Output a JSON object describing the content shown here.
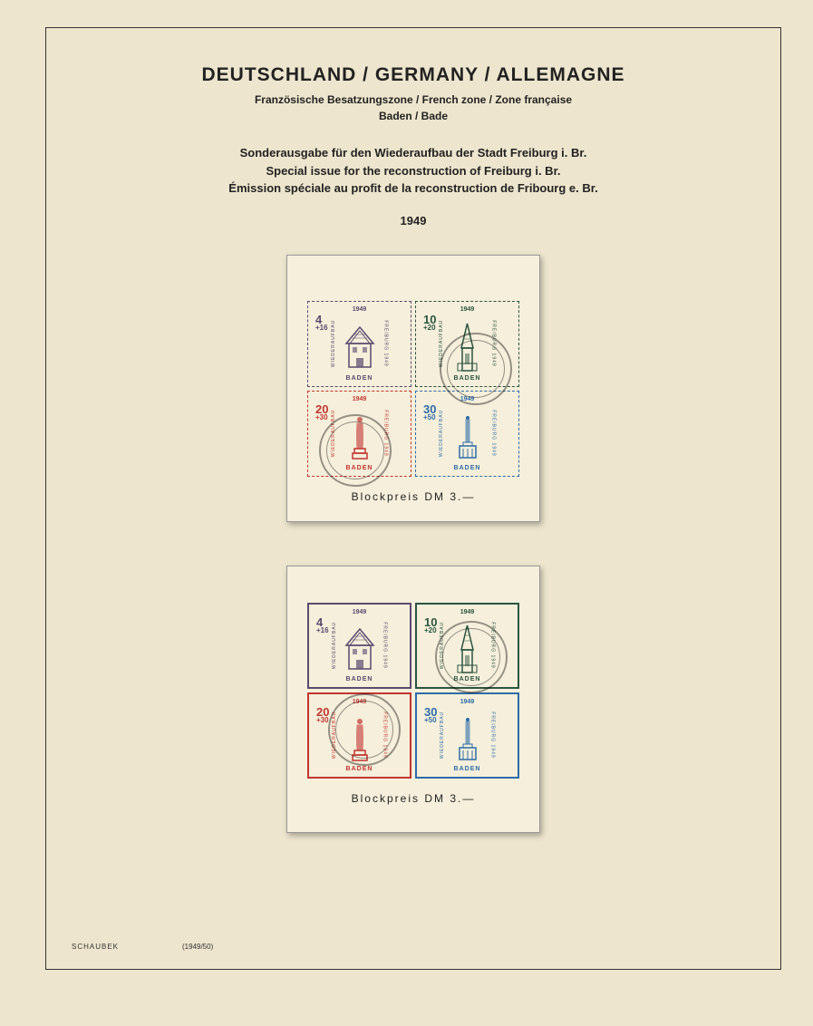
{
  "header": {
    "main_title": "DEUTSCHLAND / GERMANY / ALLEMAGNE",
    "subtitle1": "Französische Besatzungszone / French zone / Zone française",
    "subtitle2": "Baden / Bade"
  },
  "description": {
    "line1": "Sonderausgabe für den Wiederaufbau der Stadt Freiburg i. Br.",
    "line2": "Special issue for the reconstruction of Freiburg i. Br.",
    "line3": "Émission spéciale au profit de la reconstruction de Fribourg e. Br."
  },
  "year": "1949",
  "stamps": [
    {
      "value": "4",
      "surcharge": "+16",
      "color": "#5a4a6e",
      "year": "1949",
      "country": "BADEN",
      "side_text": "WIEDERAUFBAU",
      "building": "house"
    },
    {
      "value": "10",
      "surcharge": "+20",
      "color": "#2a5540",
      "year": "1949",
      "country": "BADEN",
      "side_text": "WIEDERAUFBAU",
      "building": "tower"
    },
    {
      "value": "20",
      "surcharge": "+30",
      "color": "#c23530",
      "year": "1949",
      "country": "BADEN",
      "side_text": "WIEDERAUFBAU",
      "building": "statue"
    },
    {
      "value": "30",
      "surcharge": "+50",
      "color": "#2d6ca8",
      "year": "1949",
      "country": "BADEN",
      "side_text": "WIEDERAUFBAU",
      "building": "monument"
    }
  ],
  "block_price": "Blockpreis   DM 3.—",
  "footer": {
    "publisher": "SCHAUBEK",
    "edition": "(1949/50)"
  },
  "colors": {
    "page_bg": "#ede5cd",
    "text": "#222222",
    "stamp_bg": "#f5efdb"
  }
}
